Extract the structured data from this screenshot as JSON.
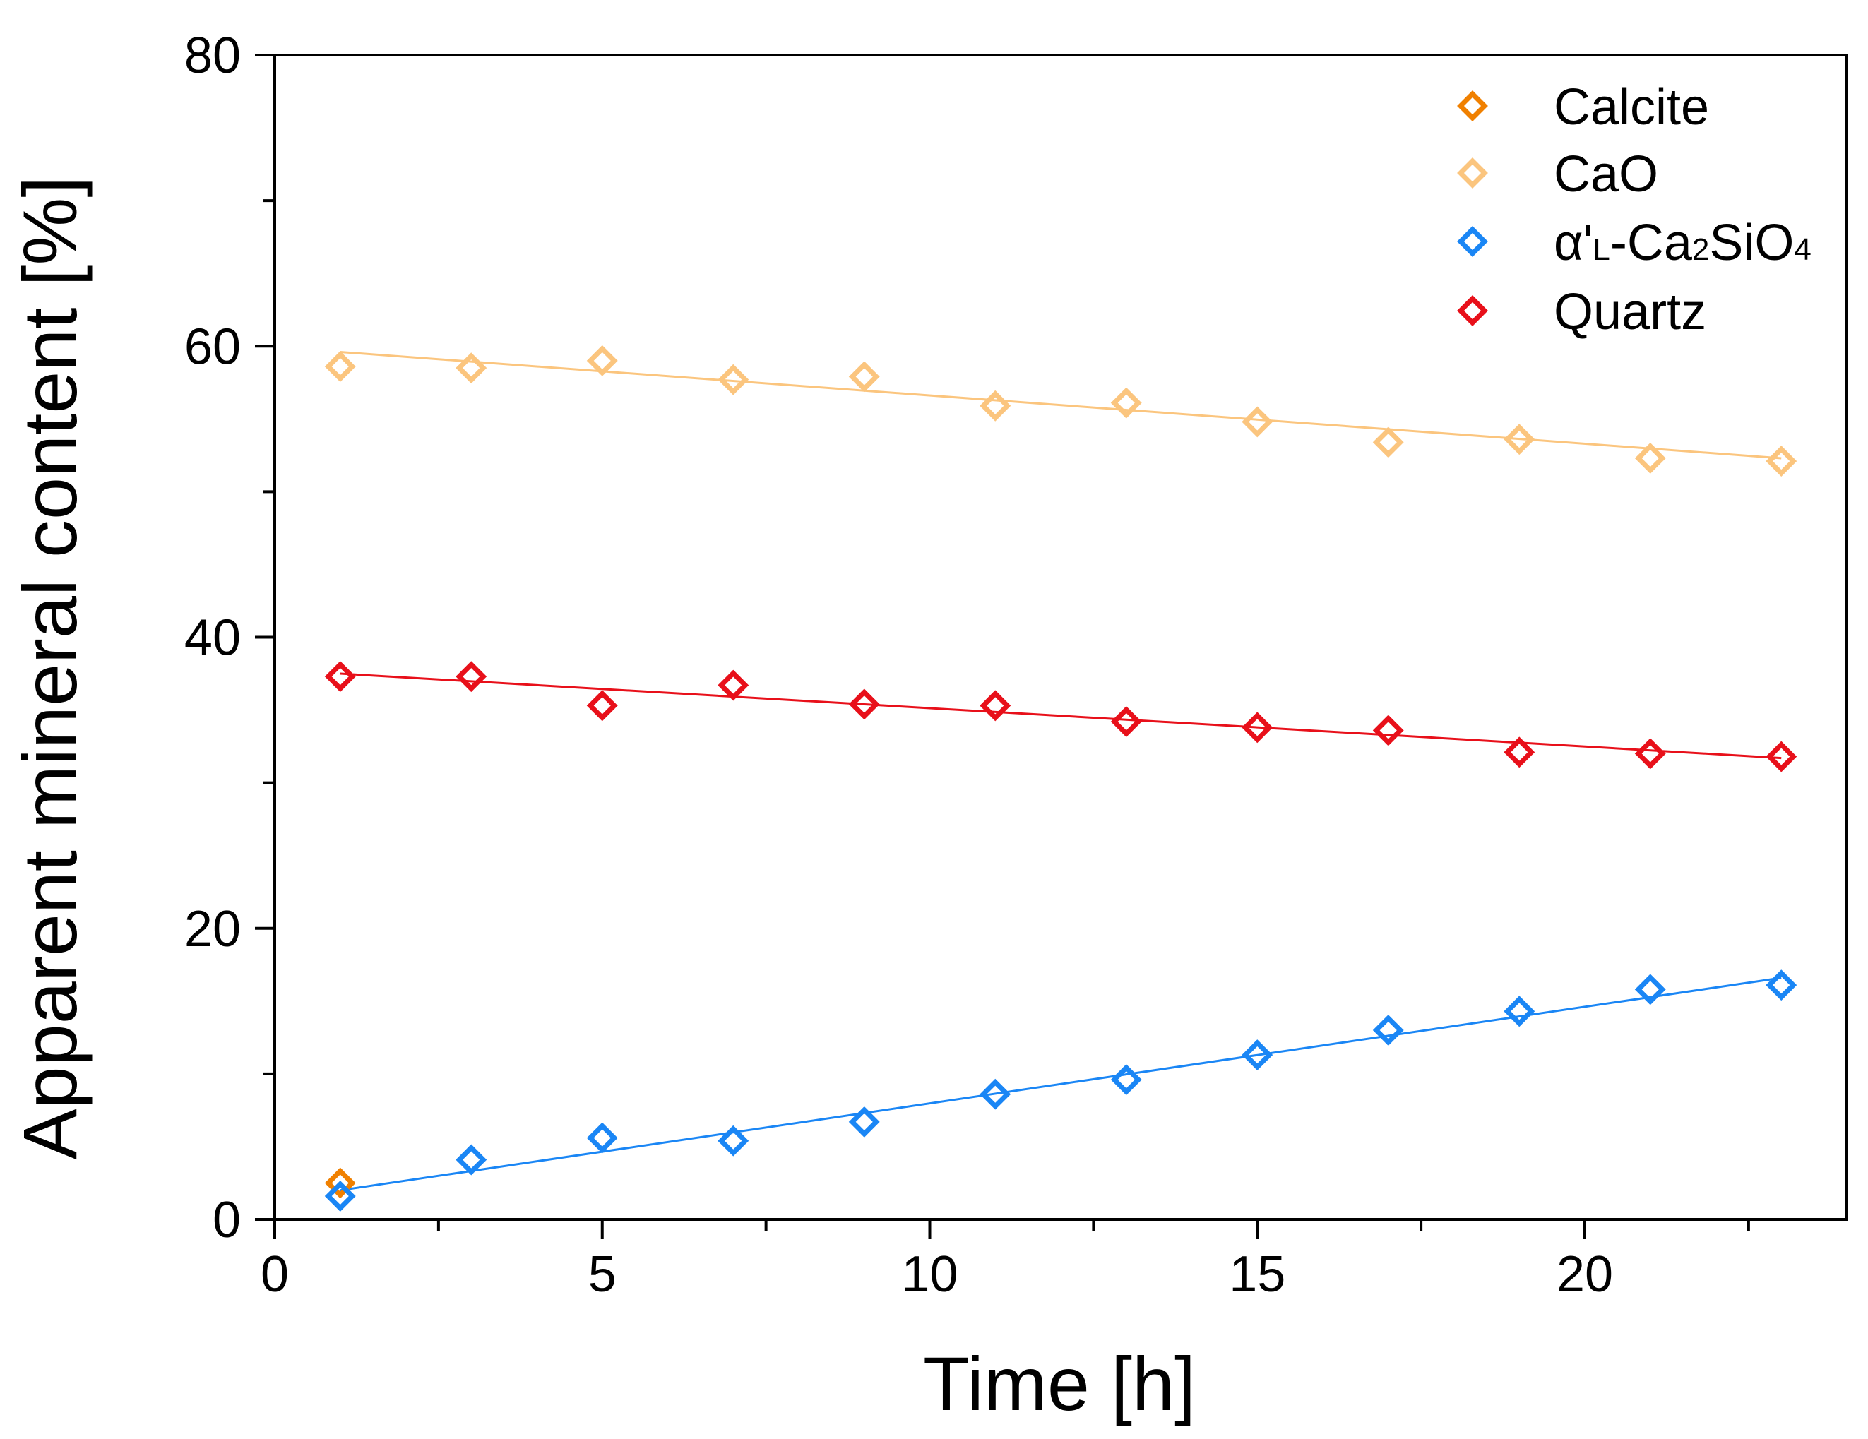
{
  "chart_data": {
    "type": "scatter",
    "xlabel": "Time [h]",
    "ylabel": "Apparent mineral content [%]",
    "xlim": [
      0,
      24
    ],
    "ylim": [
      0,
      80
    ],
    "xticks": [
      0,
      5,
      10,
      15,
      20
    ],
    "yticks": [
      0,
      20,
      40,
      60,
      80
    ],
    "grid": false,
    "legend_position": "top-right",
    "series": [
      {
        "name": "Calcite",
        "color": "#f08000",
        "marker": "diamond-open",
        "x": [
          1
        ],
        "y": [
          2.5
        ],
        "fit_line": null
      },
      {
        "name": "CaO",
        "color": "#fbc57e",
        "marker": "diamond-open",
        "x": [
          1,
          3,
          5,
          7,
          9,
          11,
          13,
          15,
          17,
          19,
          21,
          23
        ],
        "y": [
          58.6,
          58.5,
          59.0,
          57.7,
          57.9,
          55.9,
          56.1,
          54.8,
          53.4,
          53.6,
          52.3,
          52.1
        ],
        "fit_line": [
          [
            1,
            59.6
          ],
          [
            23,
            52.3
          ]
        ]
      },
      {
        "name": "α'L-Ca2SiO4",
        "color": "#1a86f5",
        "marker": "diamond-open",
        "x": [
          1,
          3,
          5,
          7,
          9,
          11,
          13,
          15,
          17,
          19,
          21,
          23
        ],
        "y": [
          1.6,
          4.1,
          5.6,
          5.4,
          6.7,
          8.6,
          9.6,
          11.3,
          13.0,
          14.3,
          15.8,
          16.1
        ],
        "fit_line": [
          [
            1,
            2.0
          ],
          [
            23,
            16.6
          ]
        ]
      },
      {
        "name": "Quartz",
        "color": "#e8101a",
        "marker": "diamond-open",
        "x": [
          1,
          3,
          5,
          7,
          9,
          11,
          13,
          15,
          17,
          19,
          21,
          23
        ],
        "y": [
          37.3,
          37.3,
          35.3,
          36.7,
          35.4,
          35.3,
          34.2,
          33.8,
          33.6,
          32.1,
          32.0,
          31.8
        ],
        "fit_line": [
          [
            1,
            37.5
          ],
          [
            23,
            31.7
          ]
        ]
      }
    ],
    "legend": [
      {
        "label": "Calcite"
      },
      {
        "label": "CaO"
      },
      {
        "label_parts": [
          "α'",
          "L",
          "-Ca",
          "2",
          "SiO",
          "4"
        ]
      },
      {
        "label": "Quartz"
      }
    ]
  }
}
